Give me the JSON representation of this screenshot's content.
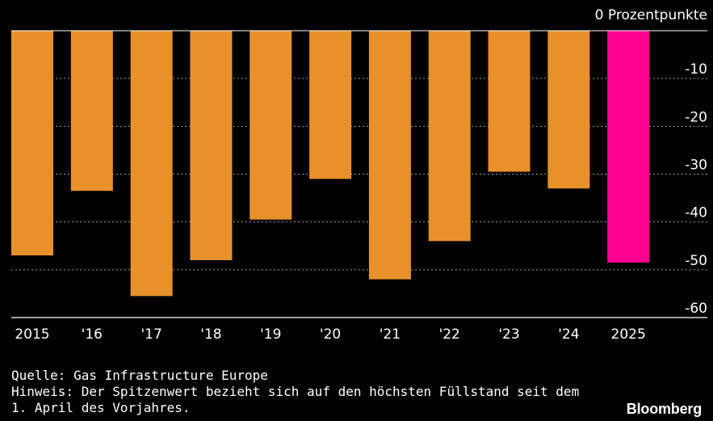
{
  "chart_data": {
    "type": "bar",
    "unit_label": "0 Prozentpunkte",
    "categories": [
      "2015",
      "'16",
      "'17",
      "'18",
      "'19",
      "'20",
      "'21",
      "'22",
      "'23",
      "'24",
      "2025"
    ],
    "values": [
      -47,
      -33.5,
      -55.5,
      -48,
      -39.5,
      -31,
      -52,
      -44,
      -29.5,
      -33,
      -48.5
    ],
    "yticks": [
      -10,
      -20,
      -30,
      -40,
      -50,
      -60
    ],
    "ylim": [
      -60,
      0
    ],
    "colors": {
      "default": "#E8912A",
      "highlight": "#FF0090"
    },
    "highlight_index": 10,
    "grid": true
  },
  "footer": {
    "source": "Quelle: Gas Infrastructure Europe",
    "note_line1": "Hinweis: Der Spitzenwert bezieht sich auf den höchsten Füllstand seit dem",
    "note_line2": "1. April des Vorjahres."
  },
  "brand": "Bloomberg"
}
